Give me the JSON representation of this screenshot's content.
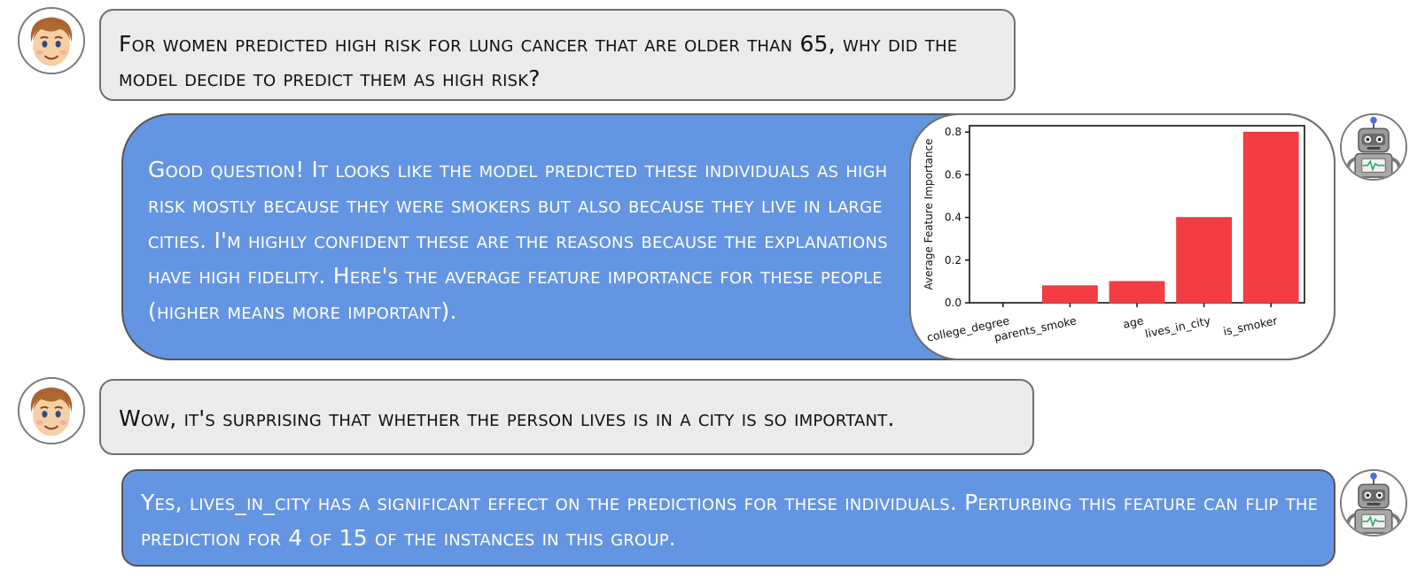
{
  "messages": [
    {
      "role": "user",
      "text": "For women predicted high risk for lung cancer that are older than 65, why did the model decide to predict them as high risk?"
    },
    {
      "role": "bot",
      "text": "Good question! It looks like the model predicted these individuals as high risk mostly because they were smokers but also because they live in large cities. I'm highly confident these are the reasons because the explanations have high fidelity. Here's the average feature importance for these people (higher means more important)."
    },
    {
      "role": "user",
      "text": "Wow, it's surprising that whether the person lives is in a city is so important."
    },
    {
      "role": "bot",
      "text": "Yes, lives_in_city has a significant effect on the predictions for these individuals. Perturbing this feature can flip the prediction for 4 of 15 of the instances in this group."
    }
  ],
  "avatars": {
    "user_icon": "smiling-man-face-icon",
    "bot_icon": "robot-icon"
  },
  "colors": {
    "user_bubble": "#ebebeb",
    "bot_bubble": "#6495e2",
    "bar": "#f43d42"
  },
  "chart_data": {
    "type": "bar",
    "categories": [
      "college_degree",
      "parents_smoke",
      "age",
      "lives_in_city",
      "is_smoker"
    ],
    "values": [
      0.0,
      0.08,
      0.1,
      0.4,
      0.8
    ],
    "title": "",
    "xlabel": "",
    "ylabel": "Average Feature Importance",
    "ylim": [
      0,
      0.83
    ],
    "yticks": [
      0.0,
      0.2,
      0.4,
      0.6,
      0.8
    ],
    "ytick_labels": [
      "0.0",
      "0.2",
      "0.4",
      "0.6",
      "0.8"
    ],
    "grid": false,
    "legend": "none"
  }
}
